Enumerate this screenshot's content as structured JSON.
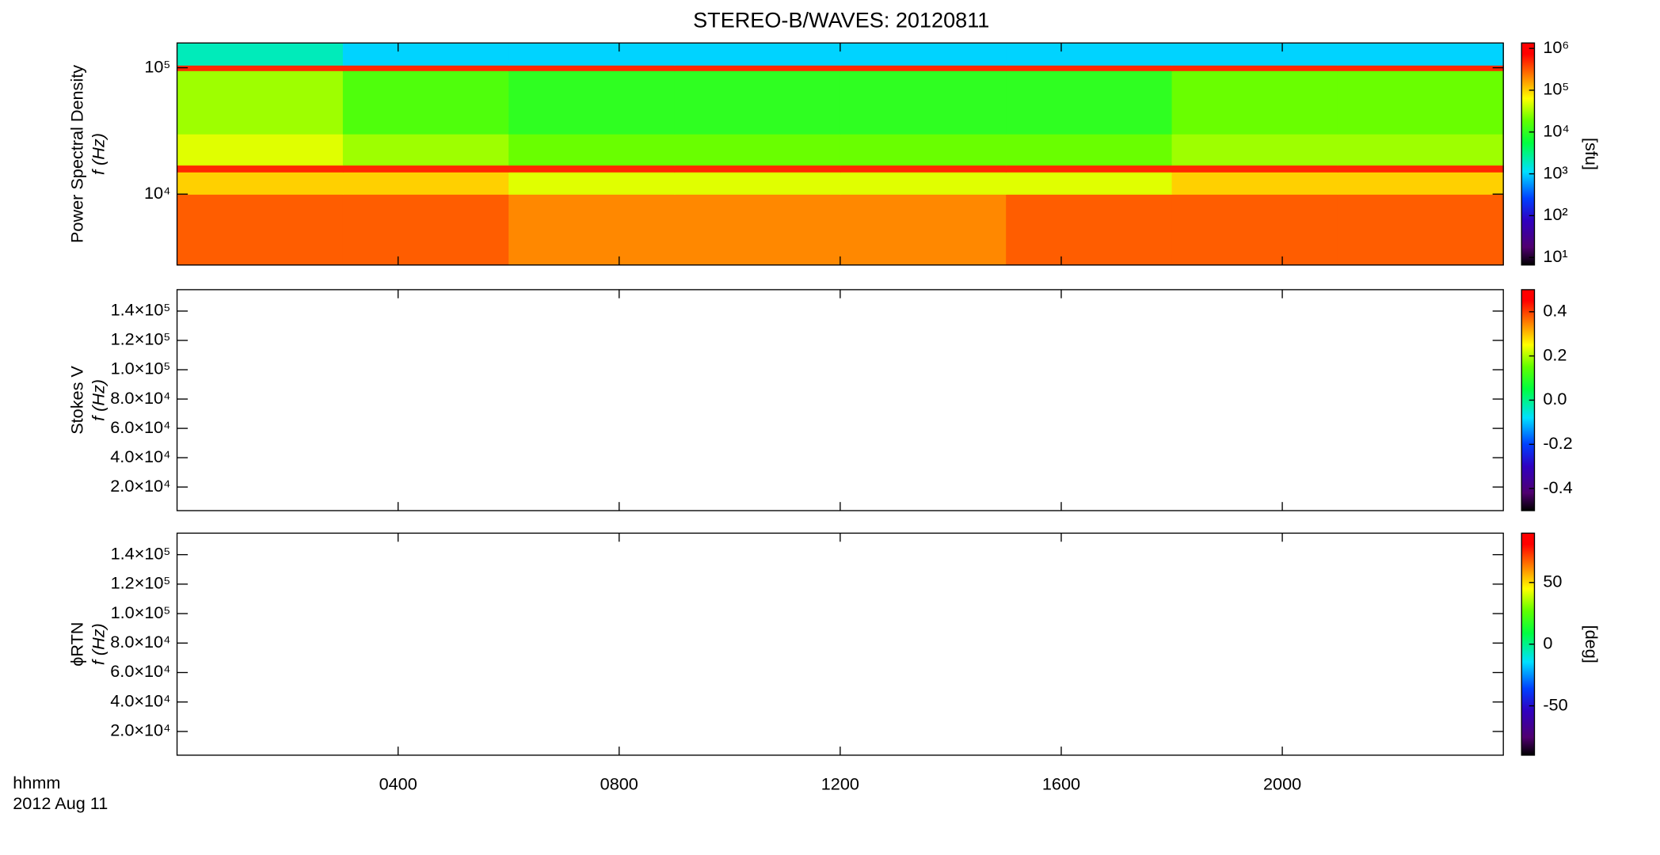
{
  "chart_data": [
    {
      "type": "heatmap",
      "title": "STEREO-B/WAVES: 20120811",
      "ylabel": [
        "Power Spectral Density",
        "f (Hz)"
      ],
      "xlim": [
        0,
        24
      ],
      "xticks": [
        4,
        8,
        12,
        16,
        20
      ],
      "ylog": true,
      "ylim": [
        2750,
        157000
      ],
      "yticks": [
        {
          "value": 10000,
          "label": "10⁴"
        },
        {
          "value": 100000,
          "label": "10⁵"
        }
      ],
      "x_bins": [
        0,
        3,
        6,
        9,
        12,
        15,
        18,
        21,
        24
      ],
      "y_bins": [
        2750,
        10000,
        15000,
        17000,
        30000,
        95000,
        105000,
        157000
      ],
      "z": [
        [
          300000,
          300000,
          200000,
          200000,
          200000,
          300000,
          300000,
          300000
        ],
        [
          100000,
          100000,
          50000,
          50000,
          50000,
          50000,
          100000,
          100000
        ],
        [
          500000,
          500000,
          500000,
          500000,
          500000,
          500000,
          500000,
          500000
        ],
        [
          50000,
          30000,
          20000,
          20000,
          20000,
          20000,
          30000,
          30000
        ],
        [
          30000,
          15000,
          10000,
          10000,
          10000,
          10000,
          20000,
          20000
        ],
        [
          500000,
          500000,
          500000,
          500000,
          500000,
          500000,
          500000,
          500000
        ],
        [
          2000,
          1000,
          1000,
          1000,
          1000,
          1000,
          1000,
          1000
        ]
      ],
      "colorbar": {
        "label": "[sfu]",
        "log": true,
        "lim": [
          6.6,
          1350000
        ],
        "ticks": [
          {
            "value": 10,
            "label": "10¹"
          },
          {
            "value": 100,
            "label": "10²"
          },
          {
            "value": 1000,
            "label": "10³"
          },
          {
            "value": 10000,
            "label": "10⁴"
          },
          {
            "value": 100000,
            "label": "10⁵"
          },
          {
            "value": 1000000,
            "label": "10⁶"
          }
        ]
      }
    },
    {
      "type": "heatmap",
      "ylabel": [
        "Stokes V",
        "f (Hz)"
      ],
      "xlim": [
        0,
        24
      ],
      "xticks": [
        4,
        8,
        12,
        16,
        20
      ],
      "ylim": [
        3900,
        154600
      ],
      "yticks": [
        {
          "value": 20000,
          "label": "2.0×10⁴"
        },
        {
          "value": 40000,
          "label": "4.0×10⁴"
        },
        {
          "value": 60000,
          "label": "6.0×10⁴"
        },
        {
          "value": 80000,
          "label": "8.0×10⁴"
        },
        {
          "value": 100000,
          "label": "1.0×10⁵"
        },
        {
          "value": 120000,
          "label": "1.2×10⁵"
        },
        {
          "value": 140000,
          "label": "1.4×10⁵"
        }
      ],
      "colorbar": {
        "lim": [
          -0.5,
          0.5
        ],
        "ticks": [
          -0.4,
          -0.2,
          {
            "value": 0,
            "label": "0.0"
          },
          0.2,
          0.4
        ]
      }
    },
    {
      "type": "heatmap",
      "ylabel": [
        "ϕRTN",
        "f (Hz)"
      ],
      "xlim": [
        0,
        24
      ],
      "xticks": [
        {
          "value": 4,
          "label": "0400"
        },
        {
          "value": 8,
          "label": "0800"
        },
        {
          "value": 12,
          "label": "1200"
        },
        {
          "value": 16,
          "label": "1600"
        },
        {
          "value": 20,
          "label": "2000"
        }
      ],
      "x_label": [
        "hhmm",
        "2012 Aug 11"
      ],
      "ylim": [
        3900,
        154600
      ],
      "yticks": [
        {
          "value": 20000,
          "label": "2.0×10⁴"
        },
        {
          "value": 40000,
          "label": "4.0×10⁴"
        },
        {
          "value": 60000,
          "label": "6.0×10⁴"
        },
        {
          "value": 80000,
          "label": "8.0×10⁴"
        },
        {
          "value": 100000,
          "label": "1.0×10⁵"
        },
        {
          "value": 120000,
          "label": "1.2×10⁵"
        },
        {
          "value": 140000,
          "label": "1.4×10⁵"
        }
      ],
      "colorbar": {
        "label": "[deg]",
        "lim": [
          -90,
          90
        ],
        "ticks": [
          -50,
          0,
          50
        ]
      }
    }
  ]
}
